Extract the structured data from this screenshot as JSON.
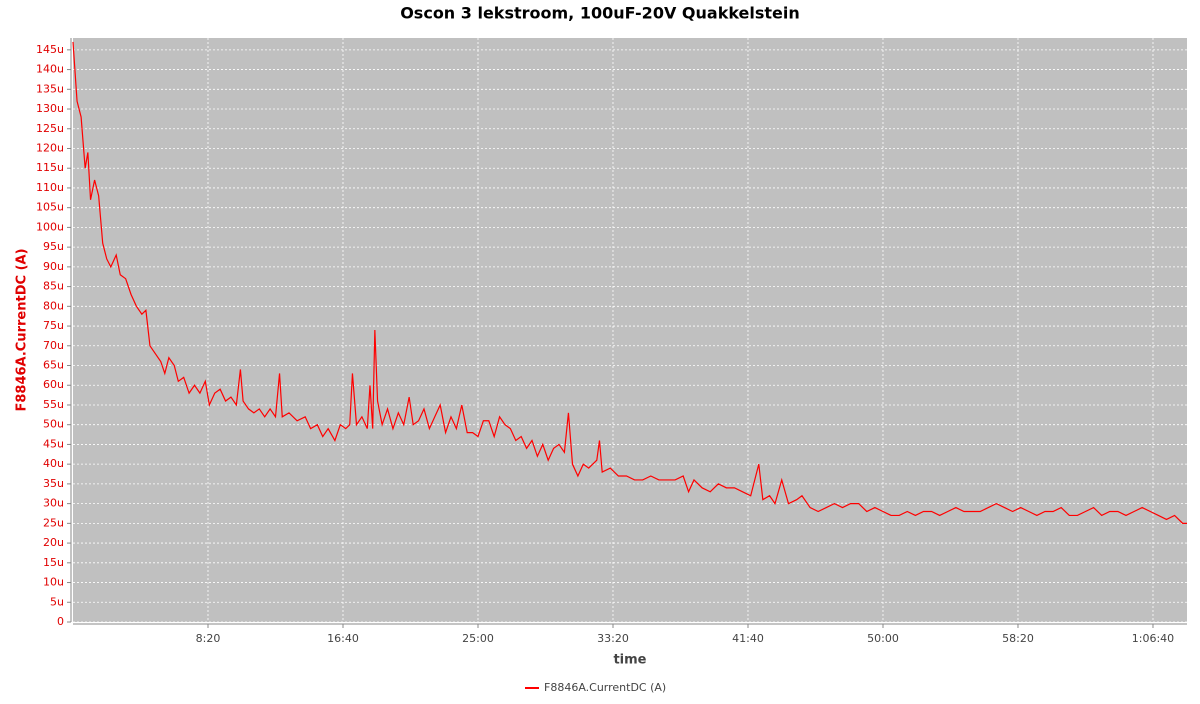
{
  "chart_data": {
    "type": "line",
    "title": "Oscon 3 lekstroom, 100uF-20V Quakkelstein",
    "x_label": "time",
    "y_label": "F8846A.CurrentDC (A)",
    "xlim": [
      0,
      4126
    ],
    "ylim": [
      0,
      148
    ],
    "xticks": [
      {
        "value": 500,
        "label": "8:20"
      },
      {
        "value": 1000,
        "label": "16:40"
      },
      {
        "value": 1500,
        "label": "25:00"
      },
      {
        "value": 2000,
        "label": "33:20"
      },
      {
        "value": 2500,
        "label": "41:40"
      },
      {
        "value": 3000,
        "label": "50:00"
      },
      {
        "value": 3500,
        "label": "58:20"
      },
      {
        "value": 4000,
        "label": "1:06:40"
      }
    ],
    "yticks": [
      0,
      {
        "value": 5,
        "label": "5u"
      },
      {
        "value": 10,
        "label": "10u"
      },
      {
        "value": 15,
        "label": "15u"
      },
      {
        "value": 20,
        "label": "20u"
      },
      {
        "value": 25,
        "label": "25u"
      },
      {
        "value": 30,
        "label": "30u"
      },
      {
        "value": 35,
        "label": "35u"
      },
      {
        "value": 40,
        "label": "40u"
      },
      {
        "value": 45,
        "label": "45u"
      },
      {
        "value": 50,
        "label": "50u"
      },
      {
        "value": 55,
        "label": "55u"
      },
      {
        "value": 60,
        "label": "60u"
      },
      {
        "value": 65,
        "label": "65u"
      },
      {
        "value": 70,
        "label": "70u"
      },
      {
        "value": 75,
        "label": "75u"
      },
      {
        "value": 80,
        "label": "80u"
      },
      {
        "value": 85,
        "label": "85u"
      },
      {
        "value": 90,
        "label": "90u"
      },
      {
        "value": 95,
        "label": "95u"
      },
      {
        "value": 100,
        "label": "100u"
      },
      {
        "value": 105,
        "label": "105u"
      },
      {
        "value": 110,
        "label": "110u"
      },
      {
        "value": 115,
        "label": "115u"
      },
      {
        "value": 120,
        "label": "120u"
      },
      {
        "value": 125,
        "label": "125u"
      },
      {
        "value": 130,
        "label": "130u"
      },
      {
        "value": 135,
        "label": "135u"
      },
      {
        "value": 140,
        "label": "140u"
      },
      {
        "value": 145,
        "label": "145u"
      }
    ],
    "grid": true,
    "x": [
      0,
      15,
      30,
      45,
      55,
      65,
      80,
      95,
      110,
      125,
      140,
      160,
      175,
      195,
      215,
      235,
      255,
      270,
      285,
      305,
      325,
      340,
      355,
      375,
      390,
      410,
      430,
      450,
      470,
      490,
      505,
      525,
      545,
      565,
      585,
      605,
      620,
      630,
      650,
      670,
      690,
      710,
      730,
      750,
      765,
      775,
      800,
      830,
      860,
      880,
      905,
      925,
      945,
      970,
      990,
      1010,
      1025,
      1035,
      1050,
      1070,
      1090,
      1100,
      1110,
      1118,
      1128,
      1145,
      1165,
      1185,
      1205,
      1225,
      1245,
      1260,
      1280,
      1300,
      1320,
      1340,
      1360,
      1380,
      1400,
      1420,
      1440,
      1460,
      1480,
      1500,
      1520,
      1540,
      1560,
      1580,
      1600,
      1620,
      1640,
      1660,
      1680,
      1700,
      1720,
      1740,
      1760,
      1780,
      1800,
      1820,
      1835,
      1850,
      1870,
      1890,
      1910,
      1940,
      1950,
      1960,
      1990,
      2020,
      2050,
      2080,
      2110,
      2140,
      2170,
      2200,
      2230,
      2260,
      2280,
      2300,
      2330,
      2360,
      2390,
      2420,
      2450,
      2480,
      2510,
      2540,
      2555,
      2580,
      2600,
      2625,
      2650,
      2680,
      2700,
      2730,
      2760,
      2790,
      2820,
      2850,
      2880,
      2910,
      2940,
      2970,
      3000,
      3030,
      3060,
      3090,
      3120,
      3150,
      3180,
      3210,
      3240,
      3270,
      3300,
      3330,
      3360,
      3390,
      3420,
      3450,
      3480,
      3510,
      3540,
      3570,
      3600,
      3630,
      3660,
      3690,
      3720,
      3750,
      3780,
      3810,
      3840,
      3870,
      3900,
      3930,
      3960,
      3990,
      4020,
      4050,
      4080,
      4110,
      4126
    ],
    "series": [
      {
        "name": "F8846A.CurrentDC (A)",
        "color": "#ff0000",
        "values": [
          147,
          132,
          128,
          115,
          119,
          107,
          112,
          108,
          96,
          92,
          90,
          93,
          88,
          87,
          83,
          80,
          78,
          79,
          70,
          68,
          66,
          63,
          67,
          65,
          61,
          62,
          58,
          60,
          58,
          61,
          55,
          58,
          59,
          56,
          57,
          55,
          64,
          56,
          54,
          53,
          54,
          52,
          54,
          52,
          63,
          52,
          53,
          51,
          52,
          49,
          50,
          47,
          49,
          46,
          50,
          49,
          50,
          63,
          50,
          52,
          49,
          60,
          49,
          74,
          56,
          50,
          54,
          49,
          53,
          50,
          57,
          50,
          51,
          54,
          49,
          52,
          55,
          48,
          52,
          49,
          55,
          48,
          48,
          47,
          51,
          51,
          47,
          52,
          50,
          49,
          46,
          47,
          44,
          46,
          42,
          45,
          41,
          44,
          45,
          43,
          53,
          40,
          37,
          40,
          39,
          41,
          46,
          38,
          39,
          37,
          37,
          36,
          36,
          37,
          36,
          36,
          36,
          37,
          33,
          36,
          34,
          33,
          35,
          34,
          34,
          33,
          32,
          40,
          31,
          32,
          30,
          36,
          30,
          31,
          32,
          29,
          28,
          29,
          30,
          29,
          30,
          30,
          28,
          29,
          28,
          27,
          27,
          28,
          27,
          28,
          28,
          27,
          28,
          29,
          28,
          28,
          28,
          29,
          30,
          29,
          28,
          29,
          28,
          27,
          28,
          28,
          29,
          27,
          27,
          28,
          29,
          27,
          28,
          28,
          27,
          28,
          29,
          28,
          27,
          26,
          27,
          25,
          25
        ]
      }
    ]
  }
}
